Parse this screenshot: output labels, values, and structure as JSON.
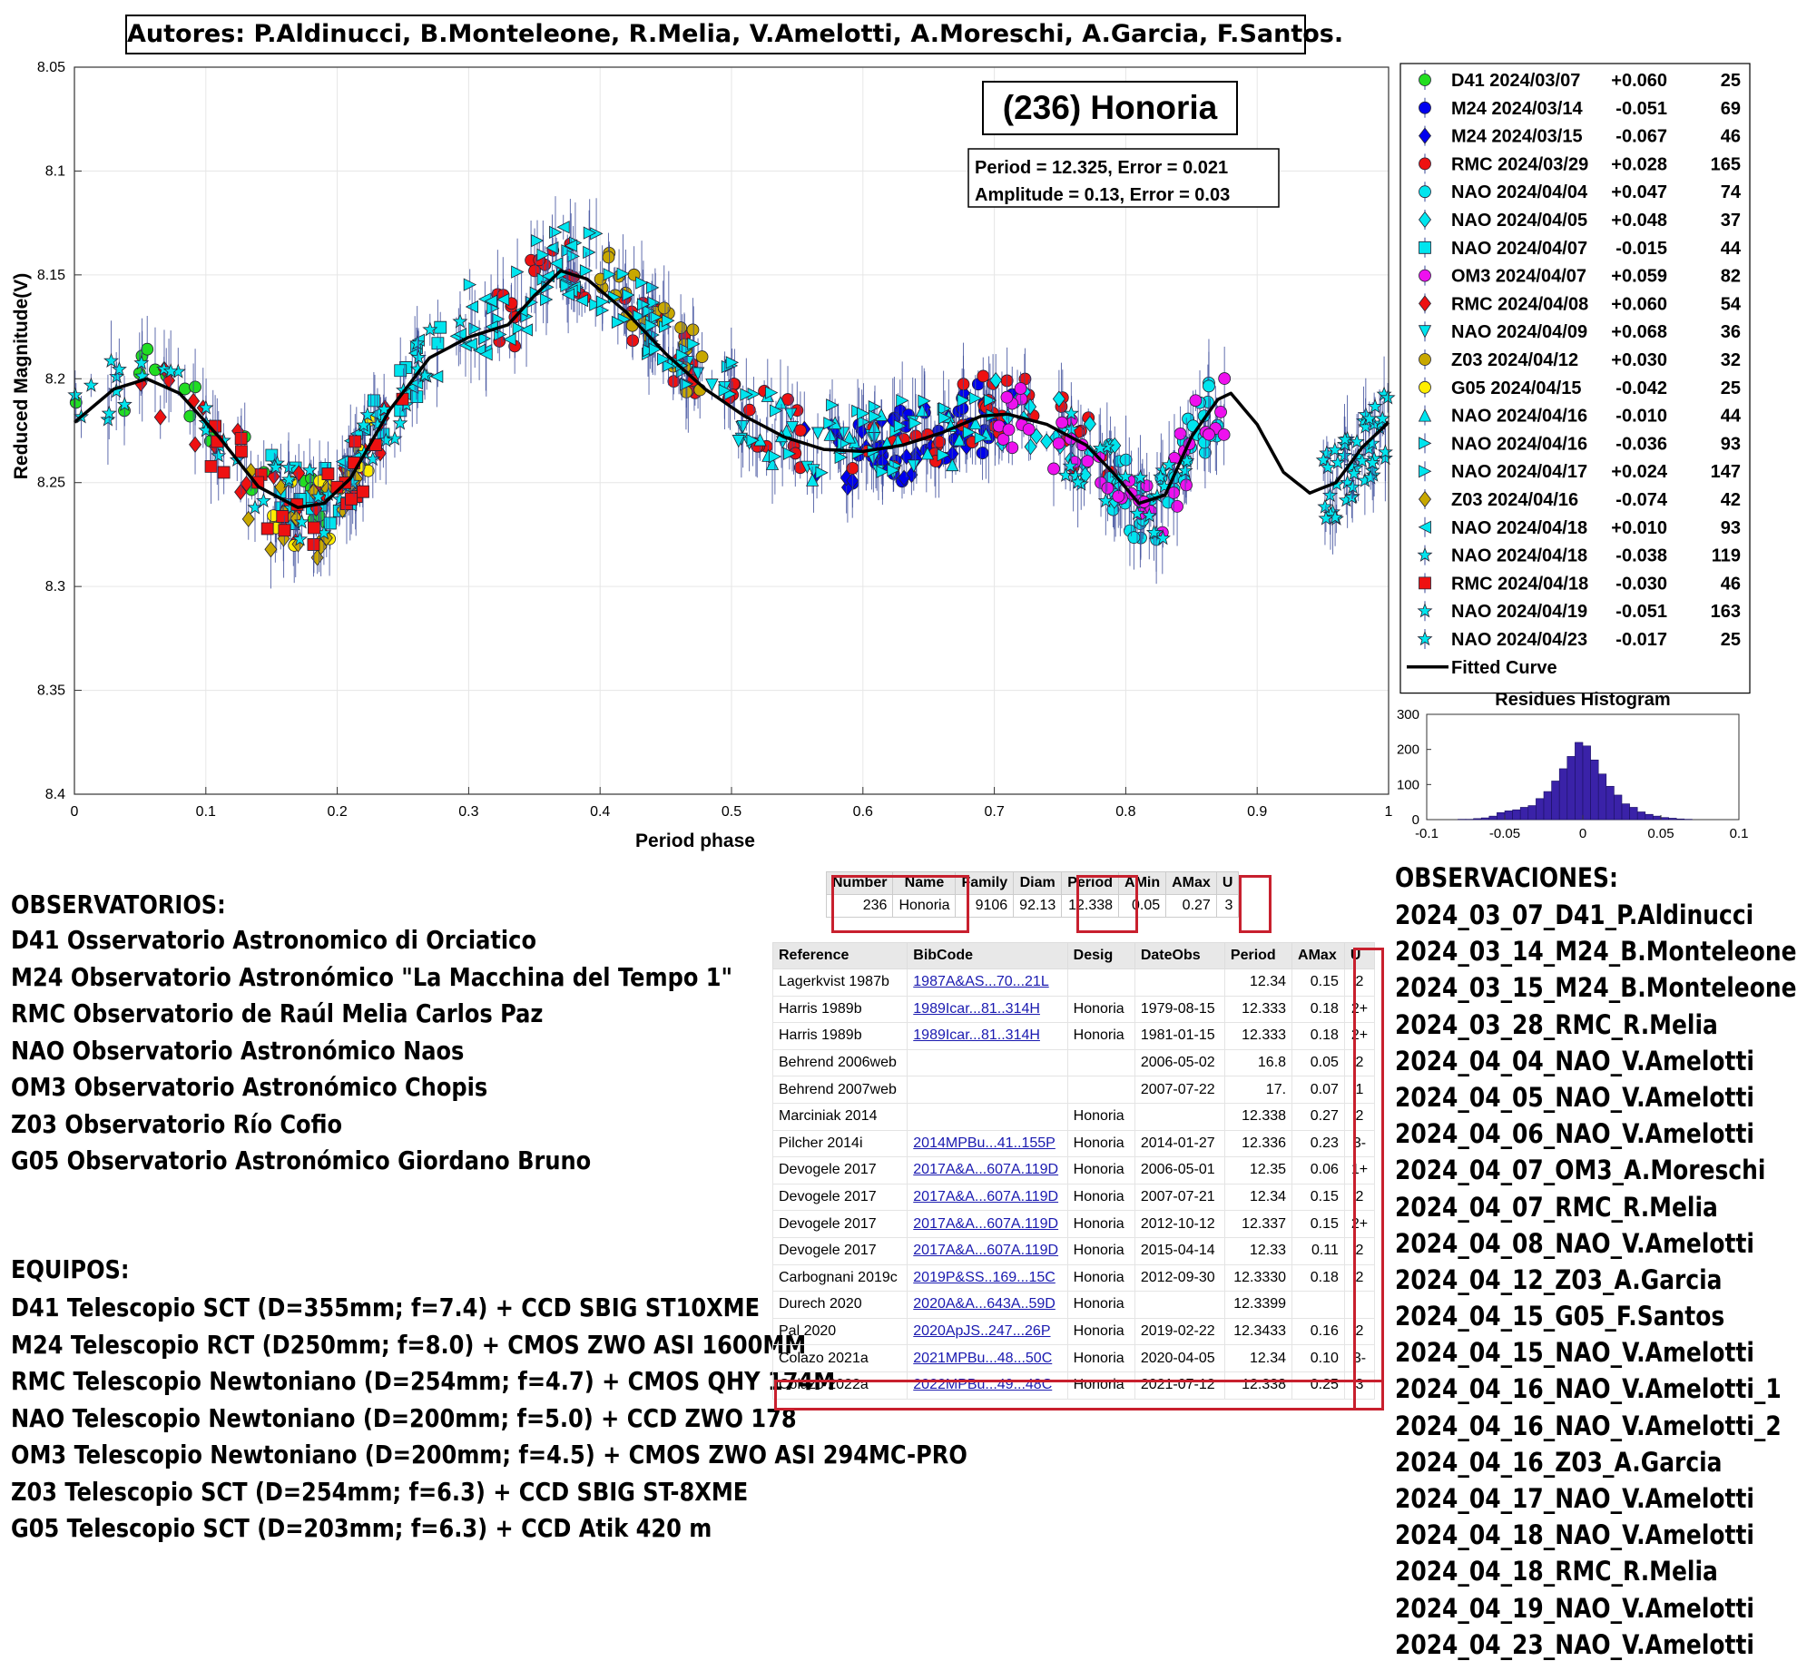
{
  "authors": "Autores: P.Aldinucci, B.Monteleone, R.Melia, V.Amelotti, A.Moreschi, A.Garcia, F.Santos.",
  "chart_data": [
    {
      "type": "scatter",
      "title": "(236) Honoria",
      "info": [
        "Period =  12.325, Error = 0.021",
        "Amplitude = 0.13, Error = 0.03"
      ],
      "xlabel": "Period phase",
      "ylabel": "Reduced Magnitude(V)",
      "xlim": [
        0,
        1
      ],
      "ylim": [
        8.4,
        8.05
      ],
      "y_reversed": true,
      "grid": true,
      "legend_position": "right",
      "xticks": [
        "0",
        "0.1",
        "0.2",
        "0.3",
        "0.4",
        "0.5",
        "0.6",
        "0.7",
        "0.8",
        "0.9",
        "1"
      ],
      "yticks": [
        "8.05",
        "8.1",
        "8.15",
        "8.2",
        "8.25",
        "8.3",
        "8.35",
        "8.4"
      ],
      "fitted_curve": {
        "name": "Fitted Curve",
        "x": [
          0,
          0.03,
          0.055,
          0.08,
          0.11,
          0.14,
          0.17,
          0.19,
          0.21,
          0.24,
          0.27,
          0.3,
          0.33,
          0.35,
          0.37,
          0.39,
          0.42,
          0.45,
          0.48,
          0.51,
          0.54,
          0.57,
          0.6,
          0.63,
          0.66,
          0.69,
          0.71,
          0.74,
          0.77,
          0.79,
          0.81,
          0.83,
          0.85,
          0.87,
          0.88,
          0.9,
          0.92,
          0.94,
          0.96,
          0.98,
          1.0
        ],
        "y": [
          8.221,
          8.205,
          8.2,
          8.207,
          8.228,
          8.252,
          8.262,
          8.26,
          8.248,
          8.215,
          8.19,
          8.18,
          8.174,
          8.16,
          8.148,
          8.152,
          8.168,
          8.188,
          8.205,
          8.218,
          8.228,
          8.234,
          8.235,
          8.232,
          8.226,
          8.218,
          8.217,
          8.222,
          8.232,
          8.245,
          8.26,
          8.256,
          8.228,
          8.21,
          8.207,
          8.222,
          8.245,
          8.255,
          8.25,
          8.233,
          8.221
        ]
      },
      "series": [
        {
          "name": "D41 2024/03/07",
          "offset": "+0.060",
          "n": "25",
          "color": "#22dd22",
          "marker": "circle",
          "x_range": [
            0,
            0.22
          ],
          "y_mean": 8.21,
          "count": 25
        },
        {
          "name": "M24 2024/03/14",
          "offset": "-0.051",
          "n": "69",
          "color": "#0000ee",
          "marker": "circle",
          "x_range": [
            0.58,
            0.72
          ],
          "y_mean": 8.223,
          "count": 40
        },
        {
          "name": "M24 2024/03/15",
          "offset": "-0.067",
          "n": "46",
          "color": "#0000ee",
          "marker": "diamond",
          "x_range": [
            0.55,
            0.68
          ],
          "y_mean": 8.232,
          "count": 30
        },
        {
          "name": "RMC 2024/03/29",
          "offset": "+0.028",
          "n": "165",
          "color": "#ee1111",
          "marker": "circle",
          "x_range": [
            0.32,
            0.8
          ],
          "y_mean": 8.205,
          "count": 90
        },
        {
          "name": "NAO 2024/04/04",
          "offset": "+0.047",
          "n": "74",
          "color": "#00e5ee",
          "marker": "circle",
          "x_range": [
            0.78,
            0.87
          ],
          "y_mean": 8.24,
          "count": 45
        },
        {
          "name": "NAO 2024/04/05",
          "offset": "+0.048",
          "n": "37",
          "color": "#00e5ee",
          "marker": "diamond",
          "x_range": [
            0.7,
            0.8
          ],
          "y_mean": 8.225,
          "count": 25
        },
        {
          "name": "NAO 2024/04/07",
          "offset": "-0.015",
          "n": "44",
          "color": "#00e5ee",
          "marker": "square",
          "x_range": [
            0.15,
            0.3
          ],
          "y_mean": 8.21,
          "count": 25
        },
        {
          "name": "OM3 2024/04/07",
          "offset": "+0.059",
          "n": "82",
          "color": "#ee11ee",
          "marker": "circle",
          "x_range": [
            0.7,
            0.88
          ],
          "y_mean": 8.235,
          "count": 45
        },
        {
          "name": "RMC 2024/04/08",
          "offset": "+0.060",
          "n": "54",
          "color": "#ee1111",
          "marker": "diamond",
          "x_range": [
            0.05,
            0.25
          ],
          "y_mean": 8.225,
          "count": 30
        },
        {
          "name": "NAO 2024/04/09",
          "offset": "+0.068",
          "n": "36",
          "color": "#00e5ee",
          "marker": "triangle-down",
          "x_range": [
            0.45,
            0.65
          ],
          "y_mean": 8.205,
          "count": 25
        },
        {
          "name": "Z03 2024/04/12",
          "offset": "+0.030",
          "n": "32",
          "color": "#c8a800",
          "marker": "circle",
          "x_range": [
            0.4,
            0.48
          ],
          "y_mean": 8.18,
          "count": 25
        },
        {
          "name": "G05 2024/04/15",
          "offset": "-0.042",
          "n": "25",
          "color": "#ffee00",
          "marker": "circle",
          "x_range": [
            0.15,
            0.23
          ],
          "y_mean": 8.255,
          "count": 15
        },
        {
          "name": "NAO 2024/04/16",
          "offset": "-0.010",
          "n": "44",
          "color": "#00e5ee",
          "marker": "triangle-up",
          "x_range": [
            0.5,
            0.7
          ],
          "y_mean": 8.225,
          "count": 25
        },
        {
          "name": "NAO 2024/04/16",
          "offset": "-0.036",
          "n": "93",
          "color": "#00e5ee",
          "marker": "triangle-right",
          "x_range": [
            0.3,
            0.5
          ],
          "y_mean": 8.165,
          "count": 50
        },
        {
          "name": "NAO 2024/04/17",
          "offset": "+0.024",
          "n": "147",
          "color": "#00e5ee",
          "marker": "triangle-right",
          "x_range": [
            0.4,
            0.7
          ],
          "y_mean": 8.19,
          "count": 60
        },
        {
          "name": "Z03 2024/04/16",
          "offset": "-0.074",
          "n": "42",
          "color": "#c8a800",
          "marker": "diamond",
          "x_range": [
            0.12,
            0.22
          ],
          "y_mean": 8.29,
          "count": 25
        },
        {
          "name": "NAO 2024/04/18",
          "offset": "+0.010",
          "n": "93",
          "color": "#00e5ee",
          "marker": "triangle-left",
          "x_range": [
            0.2,
            0.4
          ],
          "y_mean": 8.19,
          "count": 40
        },
        {
          "name": "NAO 2024/04/18",
          "offset": "-0.038",
          "n": "119",
          "color": "#00e5ee",
          "marker": "star",
          "x_range": [
            0.0,
            0.3
          ],
          "y_mean": 8.22,
          "count": 60
        },
        {
          "name": "RMC 2024/04/18",
          "offset": "-0.030",
          "n": "46",
          "color": "#ee1111",
          "marker": "square",
          "x_range": [
            0.1,
            0.25
          ],
          "y_mean": 8.232,
          "count": 25
        },
        {
          "name": "NAO 2024/04/19",
          "offset": "-0.051",
          "n": "163",
          "color": "#00e5ee",
          "marker": "star",
          "x_range": [
            0.95,
            1.0
          ],
          "y_mean": 8.23,
          "count": 50
        },
        {
          "name": "NAO 2024/04/23",
          "offset": "-0.017",
          "n": "25",
          "color": "#00e5ee",
          "marker": "star",
          "x_range": [
            0.75,
            0.85
          ],
          "y_mean": 8.245,
          "count": 25
        }
      ],
      "legend_fit_label": "Fitted Curve"
    },
    {
      "type": "bar",
      "title": "Residues Histogram",
      "xlim": [
        -0.1,
        0.1
      ],
      "ylim": [
        0,
        300
      ],
      "xticks": [
        "-0.1",
        "-0.05",
        "0",
        "0.05",
        "0.1"
      ],
      "yticks": [
        "0",
        "100",
        "200",
        "300"
      ],
      "bin_width": 0.005,
      "bin_centers": [
        -0.0775,
        -0.0725,
        -0.0675,
        -0.0625,
        -0.0575,
        -0.0525,
        -0.0475,
        -0.0425,
        -0.0375,
        -0.0325,
        -0.0275,
        -0.0225,
        -0.0175,
        -0.0125,
        -0.0075,
        -0.0025,
        0.0025,
        0.0075,
        0.0125,
        0.0175,
        0.0225,
        0.0275,
        0.0325,
        0.0375,
        0.0425,
        0.0475,
        0.0525,
        0.0575,
        0.0625,
        0.0675
      ],
      "values": [
        1,
        1,
        3,
        5,
        10,
        20,
        25,
        28,
        35,
        40,
        60,
        80,
        110,
        145,
        180,
        220,
        210,
        170,
        130,
        95,
        70,
        45,
        35,
        22,
        15,
        10,
        6,
        4,
        2,
        1
      ],
      "color": "#3a22a8"
    }
  ],
  "observatorios": {
    "title": "OBSERVATORIOS:",
    "items": [
      "D41 Osservatorio Astronomico di Orciatico",
      "M24 Observatorio Astronómico \"La Macchina del Tempo 1\"",
      "RMC Observatorio de Raúl Melia Carlos Paz",
      "NAO Observatorio Astronómico Naos",
      "OM3 Observatorio Astronómico Chopis",
      "Z03 Observatorio Río Cofio",
      "G05 Observatorio Astronómico Giordano Bruno"
    ]
  },
  "equipos": {
    "title": "EQUIPOS:",
    "items": [
      "D41 Telescopio SCT (D=355mm; f=7.4) + CCD SBIG ST10XME",
      "M24 Telescopio RCT (D250mm; f=8.0) + CMOS ZWO ASI 1600MM",
      "RMC Telescopio Newtoniano (D=254mm; f=4.7) + CMOS QHY 174M",
      "NAO Telescopio Newtoniano (D=200mm; f=5.0) + CCD ZWO 178",
      "OM3 Telescopio Newtoniano (D=200mm; f=4.5) + CMOS ZWO ASI 294MC-PRO",
      "Z03 Telescopio SCT (D=254mm; f=6.3) + CCD SBIG ST-8XME",
      "G05 Telescopio SCT (D=203mm; f=6.3) + CCD Atik 420 m"
    ]
  },
  "observaciones": {
    "title": "OBSERVACIONES:",
    "items": [
      "2024_03_07_D41_P.Aldinucci",
      "2024_03_14_M24_B.Monteleone",
      "2024_03_15_M24_B.Monteleone",
      "2024_03_28_RMC_R.Melia",
      "2024_04_04_NAO_V.Amelotti",
      "2024_04_05_NAO_V.Amelotti",
      "2024_04_06_NAO_V.Amelotti",
      "2024_04_07_OM3_A.Moreschi",
      "2024_04_07_RMC_R.Melia",
      "2024_04_08_NAO_V.Amelotti",
      "2024_04_12_Z03_A.Garcia",
      "2024_04_15_G05_F.Santos",
      "2024_04_15_NAO_V.Amelotti",
      "2024_04_16_NAO_V.Amelotti_1",
      "2024_04_16_NAO_V.Amelotti_2",
      "2024_04_16_Z03_A.Garcia",
      "2024_04_17_NAO_V.Amelotti",
      "2024_04_18_NAO_V.Amelotti",
      "2024_04_18_RMC_R.Melia",
      "2024_04_19_NAO_V.Amelotti",
      "2024_04_23_NAO_V.Amelotti"
    ]
  },
  "summary_table": {
    "headers": [
      "Number",
      "Name",
      "Family",
      "Diam",
      "Period",
      "AMin",
      "AMax",
      "U"
    ],
    "row": [
      "236",
      "Honoria",
      "9106",
      "92.13",
      "12.338",
      "0.05",
      "0.27",
      "3"
    ]
  },
  "ref_table": {
    "headers": [
      "Reference",
      "BibCode",
      "Desig",
      "DateObs",
      "Period",
      "AMax",
      "U"
    ],
    "rows": [
      [
        "Lagerkvist 1987b",
        "1987A&AS...70...21L",
        "",
        "",
        "12.34",
        "0.15",
        "2"
      ],
      [
        "Harris 1989b",
        "1989Icar...81..314H",
        "Honoria",
        "1979-08-15",
        "12.333",
        "0.18",
        "2+"
      ],
      [
        "Harris 1989b",
        "1989Icar...81..314H",
        "Honoria",
        "1981-01-15",
        "12.333",
        "0.18",
        "2+"
      ],
      [
        "Behrend 2006web",
        "",
        "",
        "2006-05-02",
        "16.8",
        "0.05",
        "2"
      ],
      [
        "Behrend 2007web",
        "",
        "",
        "2007-07-22",
        "17.",
        "0.07",
        "1"
      ],
      [
        "Marciniak 2014",
        "",
        "Honoria",
        "",
        "12.338",
        "0.27",
        "2"
      ],
      [
        "Pilcher 2014i",
        "2014MPBu...41..155P",
        "Honoria",
        "2014-01-27",
        "12.336",
        "0.23",
        "3-"
      ],
      [
        "Devogele 2017",
        "2017A&A...607A.119D",
        "Honoria",
        "2006-05-01",
        "12.35",
        "0.06",
        "1+"
      ],
      [
        "Devogele 2017",
        "2017A&A...607A.119D",
        "Honoria",
        "2007-07-21",
        "12.34",
        "0.15",
        "2"
      ],
      [
        "Devogele 2017",
        "2017A&A...607A.119D",
        "Honoria",
        "2012-10-12",
        "12.337",
        "0.15",
        "2+"
      ],
      [
        "Devogele 2017",
        "2017A&A...607A.119D",
        "Honoria",
        "2015-04-14",
        "12.33",
        "0.11",
        "2"
      ],
      [
        "Carbognani 2019c",
        "2019P&SS..169...15C",
        "Honoria",
        "2012-09-30",
        "12.3330",
        "0.18",
        "2"
      ],
      [
        "Durech 2020",
        "2020A&A...643A..59D",
        "Honoria",
        "",
        "12.3399",
        "",
        ""
      ],
      [
        "Pal 2020",
        "2020ApJS..247...26P",
        "Honoria",
        "2019-02-22",
        "12.3433",
        "0.16",
        "2"
      ],
      [
        "Colazo 2021a",
        "2021MPBu...48...50C",
        "Honoria",
        "2020-04-05",
        "12.34",
        "0.10",
        "3-"
      ],
      [
        "Colazo 2022a",
        "2022MPBu...49...48C",
        "Honoria",
        "2021-07-12",
        "12.338",
        "0.25",
        "3"
      ]
    ]
  },
  "accent_color": "#c8202e"
}
